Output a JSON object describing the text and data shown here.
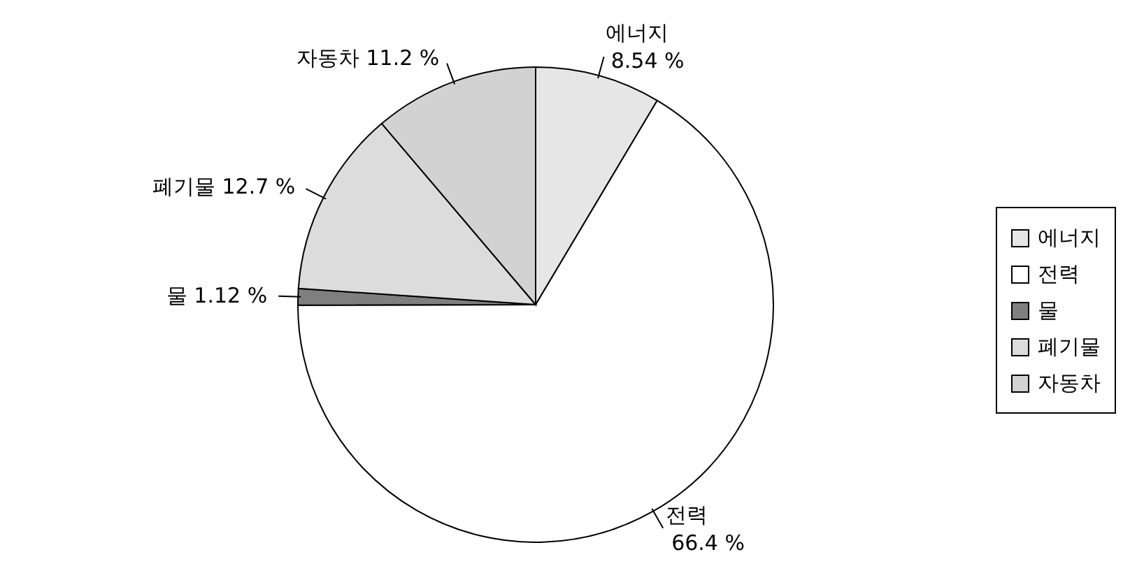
{
  "chart_data": {
    "type": "pie",
    "categories": [
      "에너지",
      "전력",
      "물",
      "폐기물",
      "자동차"
    ],
    "values": [
      8.54,
      66.4,
      1.12,
      12.7,
      11.2
    ],
    "value_labels": [
      "8.54 %",
      "66.4 %",
      "1.12 %",
      "12.7 %",
      "11.2 %"
    ],
    "colors": [
      "#e6e6e6",
      "#ffffff",
      "#7f7f7f",
      "#dcdcdc",
      "#d2d2d2"
    ],
    "legend": "right"
  }
}
